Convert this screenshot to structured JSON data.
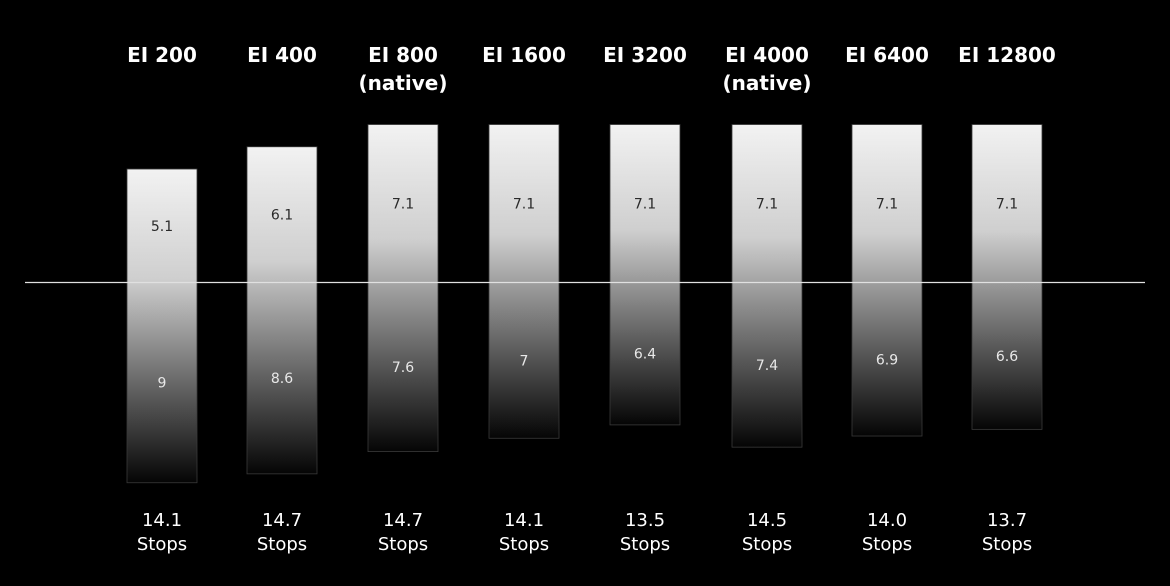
{
  "chart_data": {
    "type": "bar",
    "categories": [
      [
        "EI 200"
      ],
      [
        "EI 400"
      ],
      [
        "EI 800",
        "(native)"
      ],
      [
        "EI 1600"
      ],
      [
        "EI 3200"
      ],
      [
        "EI 4000",
        "(native)"
      ],
      [
        "EI 6400"
      ],
      [
        "EI 12800"
      ]
    ],
    "series": [
      {
        "values": [
          5.1,
          6.1,
          7.1,
          7.1,
          7.1,
          7.1,
          7.1,
          7.1
        ]
      },
      {
        "values": [
          9,
          8.6,
          7.6,
          7,
          6.4,
          7.4,
          6.9,
          6.6
        ]
      }
    ],
    "totals": [
      [
        "14.1",
        "Stops"
      ],
      [
        "14.7",
        "Stops"
      ],
      [
        "14.7",
        "Stops"
      ],
      [
        "14.1",
        "Stops"
      ],
      [
        "13.5",
        "Stops"
      ],
      [
        "14.5",
        "Stops"
      ],
      [
        "14.0",
        "Stops"
      ],
      [
        "13.7",
        "Stops"
      ]
    ],
    "title": "",
    "xlabel": "",
    "ylabel": "",
    "grid": false,
    "legend": "none",
    "colors": {
      "background": "#000000",
      "bar_top": "#f2f2f2",
      "bar_bottom": "#050505",
      "bar_border": "#3a3a3a",
      "baseline": "#e0e0e0",
      "text": "#ffffff"
    }
  }
}
